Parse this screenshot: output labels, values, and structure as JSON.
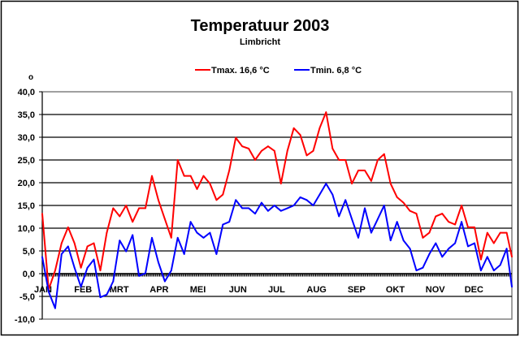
{
  "chart_data": {
    "type": "line",
    "title": "Temperatuur 2003",
    "subtitle": "Limbricht",
    "ylabel": "o",
    "xlabel": "",
    "ylim": [
      -10,
      40
    ],
    "ytick_step": 5,
    "ytick_labels": [
      "40,0",
      "35,0",
      "30,0",
      "25,0",
      "20,0",
      "15,0",
      "10,0",
      "5,0",
      "0,0",
      "-5,0",
      "-10,0"
    ],
    "grid": true,
    "legend_position": "top-center",
    "x_unit": "day of year",
    "x_range": [
      0,
      364
    ],
    "months": [
      {
        "label": "JAN",
        "start_day": 0
      },
      {
        "label": "FEB",
        "start_day": 31
      },
      {
        "label": "MRT",
        "start_day": 59
      },
      {
        "label": "APR",
        "start_day": 90
      },
      {
        "label": "MEI",
        "start_day": 120
      },
      {
        "label": "JUN",
        "start_day": 151
      },
      {
        "label": "JUL",
        "start_day": 181
      },
      {
        "label": "AUG",
        "start_day": 212
      },
      {
        "label": "SEP",
        "start_day": 243
      },
      {
        "label": "OKT",
        "start_day": 273
      },
      {
        "label": "NOV",
        "start_day": 304
      },
      {
        "label": "DEC",
        "start_day": 334
      }
    ],
    "x": [
      0,
      5,
      10,
      15,
      20,
      25,
      30,
      35,
      40,
      45,
      50,
      55,
      60,
      65,
      70,
      75,
      80,
      85,
      90,
      95,
      100,
      105,
      110,
      115,
      120,
      125,
      130,
      135,
      140,
      145,
      150,
      155,
      160,
      165,
      170,
      175,
      180,
      185,
      190,
      195,
      200,
      205,
      210,
      215,
      220,
      225,
      230,
      235,
      240,
      245,
      250,
      255,
      260,
      265,
      270,
      275,
      280,
      285,
      290,
      295,
      300,
      305,
      310,
      315,
      320,
      325,
      330,
      335,
      340,
      345,
      350,
      355,
      360,
      364
    ],
    "series": [
      {
        "name": "Tmax. 16,6 °C",
        "color": "#ff0000",
        "values": [
          13.2,
          -3.5,
          0.7,
          6.7,
          10.2,
          6.7,
          1.3,
          6.0,
          6.7,
          0.7,
          9.0,
          14.4,
          12.6,
          15.0,
          11.4,
          14.4,
          14.4,
          21.5,
          16.2,
          12.0,
          7.9,
          25.0,
          21.5,
          21.5,
          18.6,
          21.5,
          19.8,
          16.2,
          17.4,
          22.7,
          29.9,
          28.0,
          27.5,
          25.0,
          27.0,
          28.0,
          27.0,
          19.8,
          27.0,
          32.0,
          30.5,
          26.0,
          27.0,
          32.0,
          35.5,
          27.5,
          25.0,
          25.0,
          19.8,
          22.7,
          22.7,
          20.4,
          25.0,
          26.3,
          19.8,
          16.8,
          15.6,
          13.8,
          13.2,
          7.9,
          9.0,
          12.6,
          13.2,
          11.4,
          10.8,
          15.0,
          10.2,
          10.2,
          3.1,
          9.0,
          6.7,
          9.0,
          9.0,
          3.7
        ]
      },
      {
        "name": "Tmin. 6,8 °C",
        "color": "#0000ff",
        "values": [
          3.7,
          -4.0,
          -7.6,
          4.3,
          6.0,
          1.3,
          -2.9,
          1.3,
          3.1,
          -5.2,
          -4.6,
          -1.7,
          7.3,
          4.9,
          8.5,
          -0.5,
          0.1,
          7.9,
          2.5,
          -1.7,
          0.7,
          7.9,
          4.3,
          11.4,
          9.0,
          7.9,
          9.0,
          4.3,
          10.8,
          11.4,
          16.2,
          14.4,
          14.4,
          13.2,
          15.6,
          13.8,
          15.0,
          13.8,
          14.4,
          15.0,
          16.8,
          16.2,
          15.0,
          17.4,
          19.8,
          17.4,
          12.6,
          16.2,
          12.0,
          7.9,
          14.4,
          9.0,
          12.0,
          15.0,
          7.3,
          11.4,
          7.3,
          5.5,
          0.7,
          1.3,
          4.3,
          6.7,
          3.7,
          5.5,
          6.7,
          11.4,
          6.0,
          6.7,
          0.7,
          3.7,
          0.7,
          1.9,
          5.5,
          -2.9
        ]
      }
    ]
  }
}
